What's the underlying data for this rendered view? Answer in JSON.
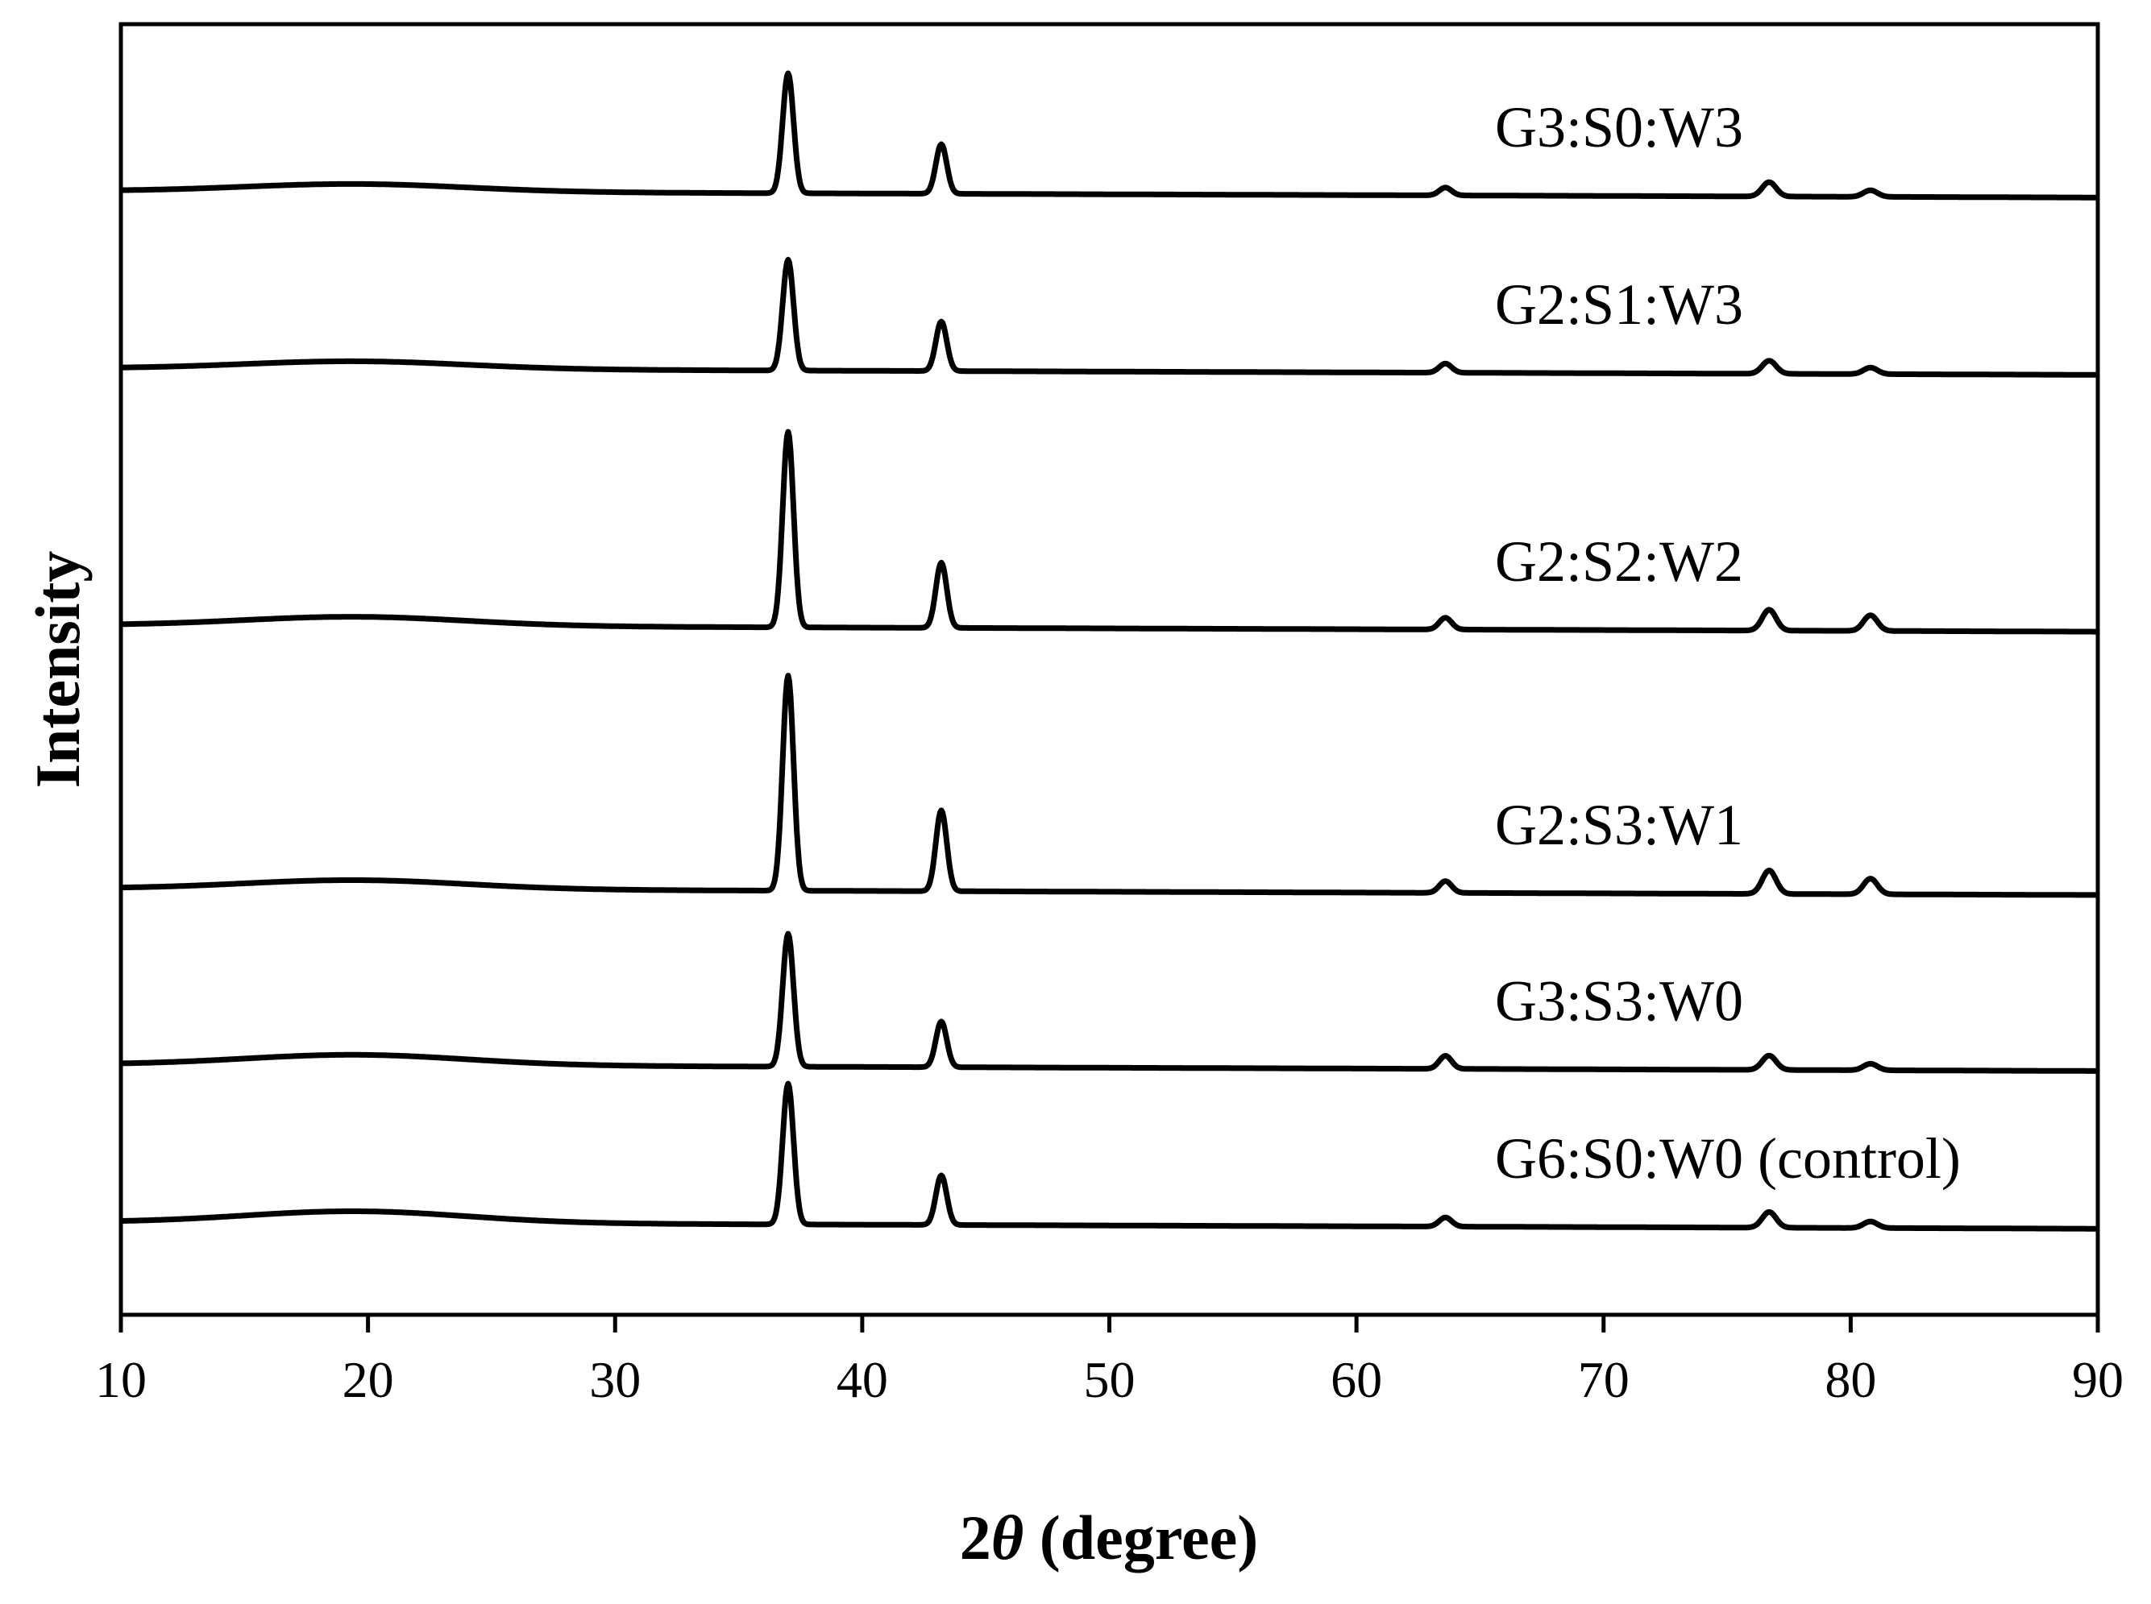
{
  "chart_data": {
    "type": "line",
    "title": "",
    "xlabel": {
      "prefix": "2",
      "symbol": "θ",
      "suffix": " (degree)"
    },
    "ylabel": "Intensity",
    "xlim": [
      10,
      90
    ],
    "x_ticks": [
      10,
      20,
      30,
      40,
      50,
      60,
      70,
      80,
      90
    ],
    "y_ticks_labeled": false,
    "grid": false,
    "legend": "none",
    "colors": {
      "line": "#000000",
      "background": "#ffffff"
    },
    "peaks_2theta": [
      37.0,
      43.2,
      63.6,
      76.7,
      80.8
    ],
    "amorphous_hump_center": 19.5,
    "series": [
      {
        "name": "G3:S0:W3",
        "baseline": 4.02,
        "drift": -0.05,
        "hump": 0.06,
        "peak_heights": [
          0.92,
          0.38,
          0.06,
          0.11,
          0.05
        ]
      },
      {
        "name": "G2:S1:W3",
        "baseline": 2.66,
        "drift": -0.05,
        "hump": 0.06,
        "peak_heights": [
          0.85,
          0.38,
          0.07,
          0.1,
          0.05
        ]
      },
      {
        "name": "G2:S2:W2",
        "baseline": 0.69,
        "drift": -0.05,
        "hump": 0.07,
        "peak_heights": [
          1.5,
          0.5,
          0.09,
          0.16,
          0.12
        ]
      },
      {
        "name": "G2:S3:W1",
        "baseline": -1.33,
        "drift": -0.05,
        "hump": 0.07,
        "peak_heights": [
          1.65,
          0.62,
          0.09,
          0.18,
          0.12
        ]
      },
      {
        "name": "G3:S3:W0",
        "baseline": -2.68,
        "drift": -0.05,
        "hump": 0.08,
        "peak_heights": [
          1.02,
          0.35,
          0.1,
          0.11,
          0.05
        ]
      },
      {
        "name": "G6:S0:W0 (control)",
        "baseline": -3.89,
        "drift": -0.05,
        "hump": 0.09,
        "peak_heights": [
          1.08,
          0.38,
          0.07,
          0.12,
          0.05
        ]
      }
    ]
  }
}
